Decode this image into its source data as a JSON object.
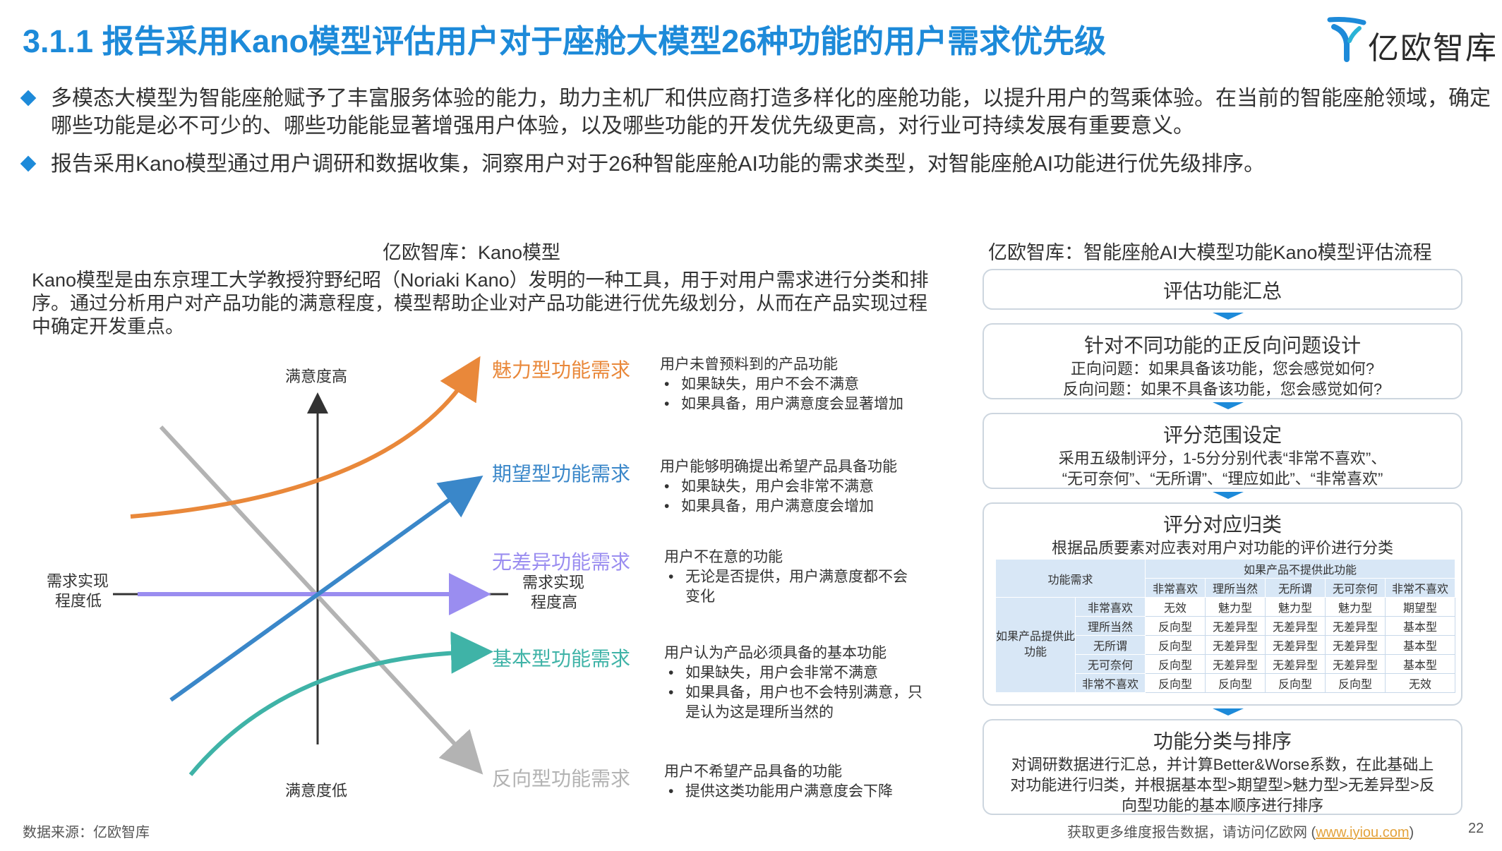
{
  "title": "3.1.1 报告采用Kano模型评估用户对于座舱大模型26种功能的用户需求优先级",
  "logo": {
    "text": "亿欧智库"
  },
  "bullets": [
    "多模态大模型为智能座舱赋予了丰富服务体验的能力，助力主机厂和供应商打造多样化的座舱功能，以提升用户的驾乘体验。在当前的智能座舱领域，确定哪些功能是必不可少的、哪些功能能显著增强用户体验，以及哪些功能的开发优先级更高，对行业可持续发展有重要意义。",
    "报告采用Kano模型通过用户调研和数据收集，洞察用户对于26种智能座舱AI功能的需求类型，对智能座舱AI功能进行优先级排序。"
  ],
  "left": {
    "title": "亿欧智库：Kano模型",
    "description": "Kano模型是由东京理工大学教授狩野纪昭（Noriaki Kano）发明的一种工具，用于对用户需求进行分类和排序。通过分析用户对产品功能的满意程度，模型帮助企业对产品功能进行优先级划分，从而在产品实现过程中确定开发重点。",
    "axis": {
      "y_top": "满意度高",
      "y_bottom": "满意度低",
      "x_left_1": "需求实现",
      "x_left_2": "程度低",
      "x_right_1": "需求实现",
      "x_right_2": "程度高"
    },
    "categories": [
      {
        "name": "魅力型功能需求",
        "color": "#e9883a",
        "head": "用户未曾预料到的产品功能",
        "items": [
          "如果缺失，用户不会不满意",
          "如果具备，用户满意度会显著增加"
        ]
      },
      {
        "name": "期望型功能需求",
        "color": "#3a87c9",
        "head": "用户能够明确提出希望产品具备功能",
        "items": [
          "如果缺失，用户会非常不满意",
          "如果具备，用户满意度会增加"
        ]
      },
      {
        "name": "无差异功能需求",
        "color": "#9a8df0",
        "head": "用户不在意的功能",
        "items": [
          "无论是否提供，用户满意度都不会变化"
        ]
      },
      {
        "name": "基本型功能需求",
        "color": "#3fb3a7",
        "head": "用户认为产品必须具备的基本功能",
        "items": [
          "如果缺失，用户会非常不满意",
          "如果具备，用户也不会特别满意，只是认为这是理所当然的"
        ]
      },
      {
        "name": "反向型功能需求",
        "color": "#b3b3b3",
        "head": "用户不希望产品具备的功能",
        "items": [
          "提供这类功能用户满意度会下降"
        ]
      }
    ]
  },
  "right": {
    "title": "亿欧智库：智能座舱AI大模型功能Kano模型评估流程",
    "steps": [
      {
        "title": "评估功能汇总",
        "lines": []
      },
      {
        "title": "针对不同功能的正反向问题设计",
        "lines": [
          "正向问题：如果具备该功能，您会感觉如何?",
          "反向问题：如果不具备该功能，您会感觉如何?"
        ]
      },
      {
        "title": "评分范围设定",
        "lines": [
          "采用五级制评分，1-5分分别代表“非常不喜欢”、",
          "“无可奈何”、“无所谓”、“理应如此”、“非常喜欢”"
        ]
      },
      {
        "title": "评分对应归类",
        "lines": [
          "根据品质要素对应表对用户对功能的评价进行分类"
        ]
      },
      {
        "title": "功能分类与排序",
        "lines": [
          "对调研数据进行汇总，并计算Better&Worse系数，在此基础上",
          "对功能进行归类，并根据基本型>期望型>魅力型>无差异型>反",
          "向型功能的基本顺序进行排序"
        ]
      }
    ],
    "table": {
      "corner": "功能需求",
      "top_header": "如果产品不提供此功能",
      "side_header": "如果产品提供此功能",
      "columns": [
        "非常喜欢",
        "理所当然",
        "无所谓",
        "无可奈何",
        "非常不喜欢"
      ],
      "rows": [
        {
          "label": "非常喜欢",
          "cells": [
            "无效",
            "魅力型",
            "魅力型",
            "魅力型",
            "期望型"
          ]
        },
        {
          "label": "理所当然",
          "cells": [
            "反向型",
            "无差异型",
            "无差异型",
            "无差异型",
            "基本型"
          ]
        },
        {
          "label": "无所谓",
          "cells": [
            "反向型",
            "无差异型",
            "无差异型",
            "无差异型",
            "基本型"
          ]
        },
        {
          "label": "无可奈何",
          "cells": [
            "反向型",
            "无差异型",
            "无差异型",
            "无差异型",
            "基本型"
          ]
        },
        {
          "label": "非常不喜欢",
          "cells": [
            "反向型",
            "反向型",
            "反向型",
            "反向型",
            "无效"
          ]
        }
      ]
    }
  },
  "footer": {
    "source": "数据来源：亿欧智库",
    "more": "获取更多维度报告数据，请访问亿欧网 (",
    "link": "www.iyiou.com",
    "close": ")",
    "page": "22"
  }
}
